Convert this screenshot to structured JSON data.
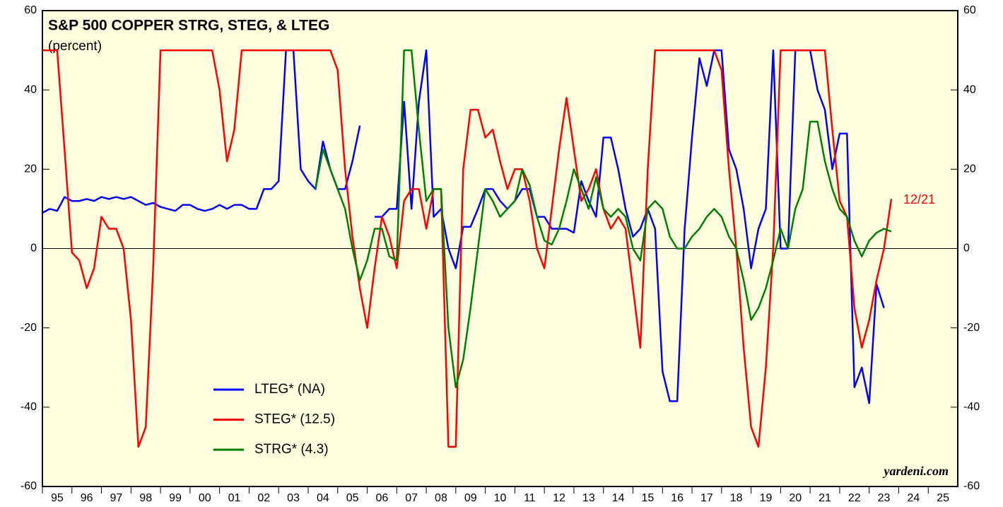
{
  "chart_data": {
    "type": "line",
    "title": "S&P 500 COPPER STRG, STEG, & LTEG",
    "subtitle": "(percent)",
    "source": "yardeni.com",
    "annotation": "12/21",
    "xlim": [
      1995,
      2026
    ],
    "xticks": [
      {
        "value": 1995,
        "label": "95"
      },
      {
        "value": 1996,
        "label": "96"
      },
      {
        "value": 1997,
        "label": "97"
      },
      {
        "value": 1998,
        "label": "98"
      },
      {
        "value": 1999,
        "label": "99"
      },
      {
        "value": 2000,
        "label": "00"
      },
      {
        "value": 2001,
        "label": "01"
      },
      {
        "value": 2002,
        "label": "02"
      },
      {
        "value": 2003,
        "label": "03"
      },
      {
        "value": 2004,
        "label": "04"
      },
      {
        "value": 2005,
        "label": "05"
      },
      {
        "value": 2006,
        "label": "06"
      },
      {
        "value": 2007,
        "label": "07"
      },
      {
        "value": 2008,
        "label": "08"
      },
      {
        "value": 2009,
        "label": "09"
      },
      {
        "value": 2010,
        "label": "10"
      },
      {
        "value": 2011,
        "label": "11"
      },
      {
        "value": 2012,
        "label": "12"
      },
      {
        "value": 2013,
        "label": "13"
      },
      {
        "value": 2014,
        "label": "14"
      },
      {
        "value": 2015,
        "label": "15"
      },
      {
        "value": 2016,
        "label": "16"
      },
      {
        "value": 2017,
        "label": "17"
      },
      {
        "value": 2018,
        "label": "18"
      },
      {
        "value": 2019,
        "label": "19"
      },
      {
        "value": 2020,
        "label": "20"
      },
      {
        "value": 2021,
        "label": "21"
      },
      {
        "value": 2022,
        "label": "22"
      },
      {
        "value": 2023,
        "label": "23"
      },
      {
        "value": 2024,
        "label": "24"
      },
      {
        "value": 2025,
        "label": "25"
      }
    ],
    "ylim": [
      -60,
      60
    ],
    "yticks": [
      -60,
      -40,
      -20,
      0,
      20,
      40,
      60
    ],
    "y2lim": [
      -60,
      60
    ],
    "y2ticks": [
      -60,
      -40,
      -20,
      0,
      20,
      40,
      60
    ],
    "x": [
      1995,
      1995.25,
      1995.5,
      1995.75,
      1996,
      1996.25,
      1996.5,
      1996.75,
      1997,
      1997.25,
      1997.5,
      1997.75,
      1998,
      1998.25,
      1998.5,
      1998.75,
      1999,
      1999.25,
      1999.5,
      1999.75,
      2000,
      2000.25,
      2000.5,
      2000.75,
      2001,
      2001.25,
      2001.5,
      2001.75,
      2002,
      2002.25,
      2002.5,
      2002.75,
      2003,
      2003.25,
      2003.5,
      2003.75,
      2004,
      2004.25,
      2004.5,
      2004.75,
      2005,
      2005.25,
      2005.5,
      2005.75,
      2006,
      2006.25,
      2006.5,
      2006.75,
      2007,
      2007.25,
      2007.5,
      2007.75,
      2008,
      2008.25,
      2008.5,
      2008.75,
      2009,
      2009.25,
      2009.5,
      2009.75,
      2010,
      2010.25,
      2010.5,
      2010.75,
      2011,
      2011.25,
      2011.5,
      2011.75,
      2012,
      2012.25,
      2012.5,
      2012.75,
      2013,
      2013.25,
      2013.5,
      2013.75,
      2014,
      2014.25,
      2014.5,
      2014.75,
      2015,
      2015.25,
      2015.5,
      2015.75,
      2016,
      2016.25,
      2016.5,
      2016.75,
      2017,
      2017.25,
      2017.5,
      2017.75,
      2018,
      2018.25,
      2018.5,
      2018.75,
      2019,
      2019.25,
      2019.5,
      2019.75,
      2020,
      2020.25,
      2020.5,
      2020.75,
      2021,
      2021.25,
      2021.5,
      2021.75,
      2022,
      2022.25,
      2022.5,
      2022.75,
      2023,
      2023.25,
      2023.5,
      2023.75
    ],
    "series": [
      {
        "name": "LTEG* (NA)",
        "color": "#0000ff",
        "values": [
          9,
          10,
          9.5,
          13,
          12,
          12,
          12.5,
          12,
          13,
          12.5,
          13,
          12.5,
          13,
          12,
          11,
          11.5,
          10.5,
          10,
          9.5,
          11,
          11,
          10,
          9.5,
          10,
          11,
          10,
          11,
          11,
          10,
          10,
          15,
          15,
          17,
          50,
          50,
          20,
          17,
          15,
          27,
          20,
          15,
          15,
          22,
          31,
          null,
          8,
          8,
          10,
          10,
          37,
          10,
          37,
          50,
          8,
          10,
          0,
          -5,
          5.5,
          5.5,
          10,
          15,
          15,
          12,
          10,
          12,
          15,
          15,
          8,
          8,
          5,
          5,
          5,
          4,
          17,
          12,
          8,
          28,
          28,
          20,
          10,
          3,
          5,
          10,
          5,
          -31,
          -38.5,
          -38.5,
          5,
          28,
          48,
          41,
          50,
          50,
          25,
          20,
          10,
          -5,
          5,
          10,
          50,
          0,
          0,
          50,
          50,
          50,
          40,
          35,
          20,
          29,
          29,
          -35,
          -30,
          -39,
          -9,
          -15,
          null
        ]
      },
      {
        "name": "STEG* (12.5)",
        "color": "#ff0000",
        "values": [
          50,
          50,
          50,
          25,
          -1,
          -3,
          -10,
          -5,
          8,
          5,
          5,
          0,
          -18,
          -50,
          -45,
          -5,
          50,
          50,
          50,
          50,
          50,
          50,
          50,
          50,
          40,
          22,
          30,
          50,
          50,
          50,
          50,
          50,
          50,
          50,
          50,
          50,
          50,
          50,
          50,
          50,
          45,
          20,
          3,
          -10,
          -20,
          -5,
          8,
          3,
          -5,
          12,
          15,
          15,
          5,
          15,
          15,
          -50,
          -50,
          20,
          35,
          35,
          28,
          30,
          22,
          15,
          20,
          20,
          12,
          0,
          -5,
          10,
          25,
          38,
          25,
          12,
          15,
          20,
          10,
          5,
          8,
          5,
          -10,
          -25,
          20,
          50,
          50,
          50,
          50,
          50,
          50,
          50,
          50,
          50,
          45,
          20,
          0,
          -25,
          -45,
          -50,
          -30,
          0,
          50,
          50,
          50,
          50,
          50,
          50,
          50,
          30,
          12,
          8,
          -15,
          -25,
          -18,
          -8,
          0,
          12.5
        ]
      },
      {
        "name": "STRG* (4.3)",
        "color": "#008000",
        "values": [
          null,
          null,
          null,
          null,
          null,
          null,
          null,
          null,
          null,
          null,
          null,
          null,
          null,
          null,
          null,
          null,
          null,
          null,
          null,
          null,
          null,
          null,
          null,
          null,
          null,
          null,
          null,
          null,
          null,
          null,
          null,
          null,
          null,
          null,
          null,
          null,
          null,
          15,
          25,
          20,
          15,
          10,
          0,
          -8,
          -3,
          5,
          5,
          -2,
          -3,
          50,
          50,
          30,
          12,
          15,
          15,
          -20,
          -35,
          -28,
          -15,
          0,
          15,
          12,
          8,
          10,
          12,
          20,
          16,
          8,
          2,
          1,
          5,
          12,
          20,
          15,
          10,
          18,
          10,
          8,
          10,
          8,
          0,
          -3,
          10,
          12,
          10,
          3,
          0,
          0,
          3,
          5,
          8,
          10,
          8,
          3,
          0,
          -8,
          -18,
          -15,
          -10,
          -3,
          5,
          0,
          10,
          15,
          32,
          32,
          22,
          15,
          10,
          8,
          2,
          -2,
          2,
          4,
          5,
          4.3
        ]
      }
    ]
  }
}
